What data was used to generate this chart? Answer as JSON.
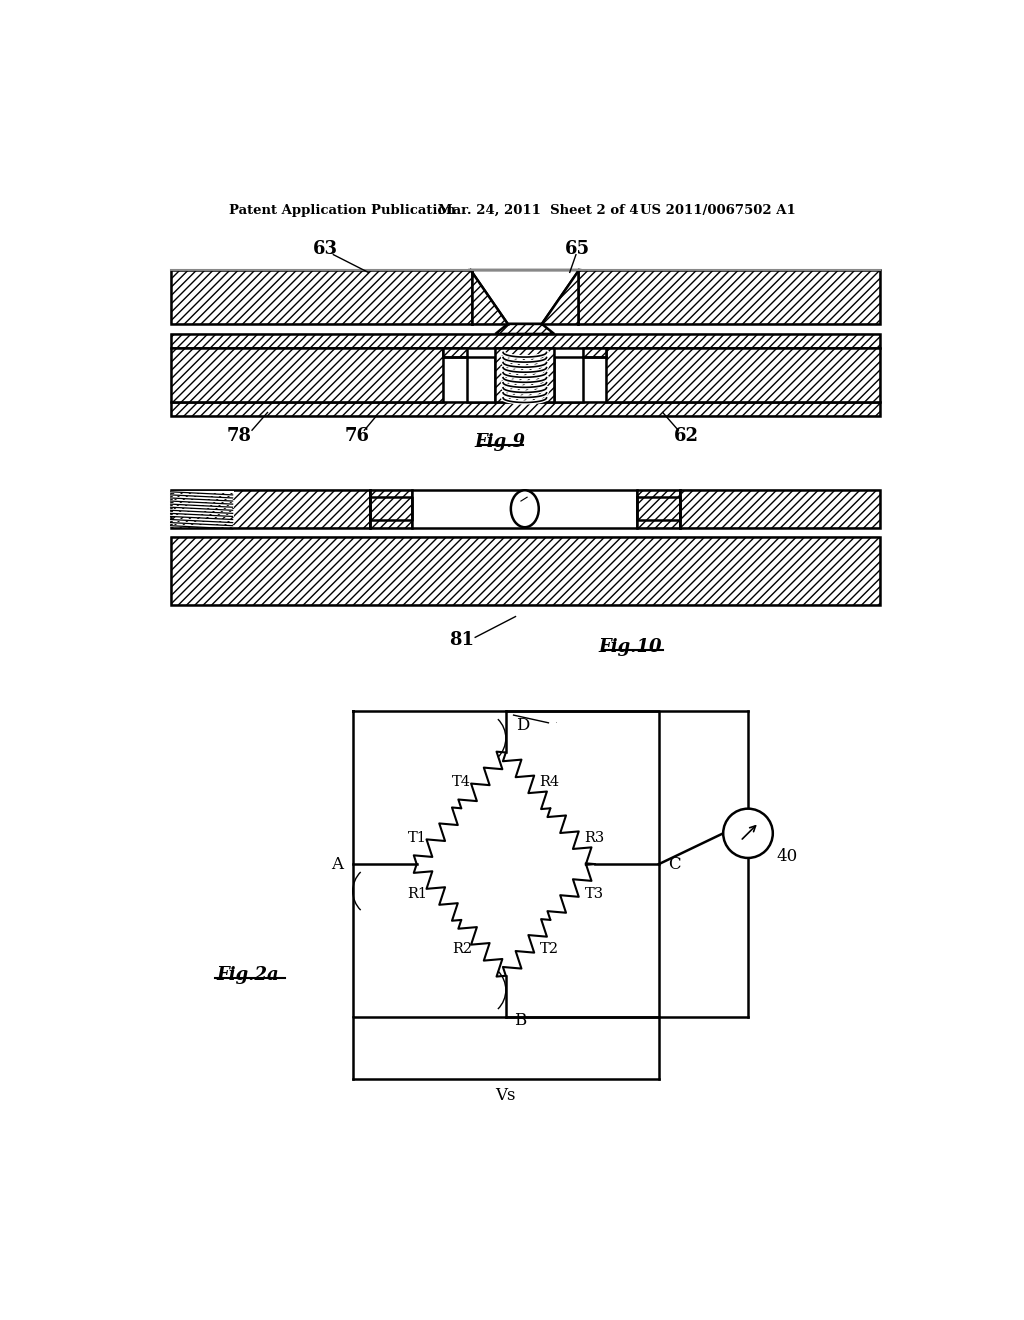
{
  "bg_color": "#ffffff",
  "header_text1": "Patent Application Publication",
  "header_text2": "Mar. 24, 2011  Sheet 2 of 4",
  "header_text3": "US 2011/0067502 A1",
  "fig9_label": "Fig.9",
  "fig10_label": "Fig.10",
  "fig2a_label": "Fig.2a",
  "label_63": "63",
  "label_65": "65",
  "label_78": "78",
  "label_76": "76",
  "label_62": "62",
  "label_81": "81",
  "label_40": "40",
  "vs_label": "Vs"
}
